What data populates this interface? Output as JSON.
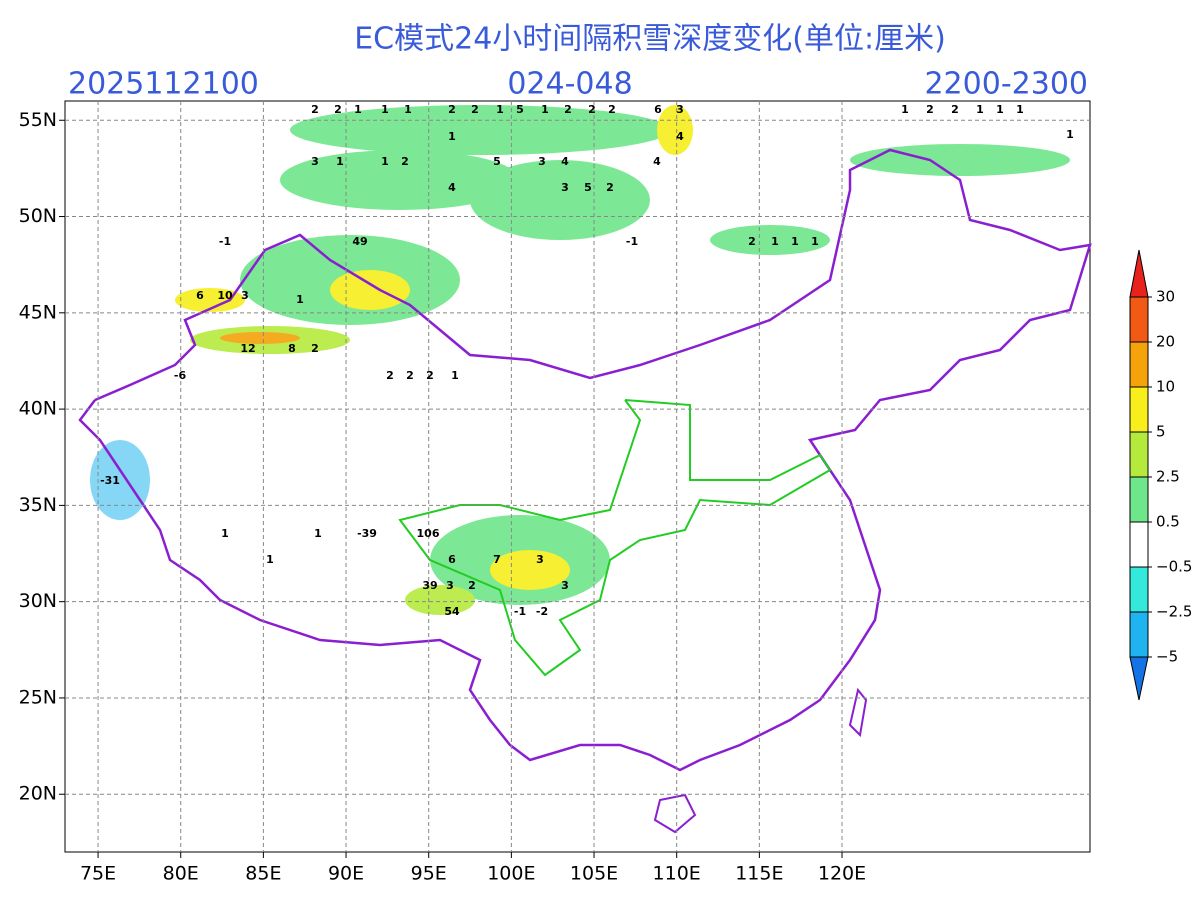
{
  "title": "EC模式24小时间隔积雪深度变化(单位:厘米)",
  "header": {
    "init_time": "2025112100",
    "forecast_hours": "024-048",
    "valid_range": "2200-2300"
  },
  "map": {
    "xlim": [
      73,
      135
    ],
    "ylim": [
      17,
      56
    ],
    "xticks": [
      {
        "value": 75,
        "label": "75E"
      },
      {
        "value": 80,
        "label": "80E"
      },
      {
        "value": 85,
        "label": "85E"
      },
      {
        "value": 90,
        "label": "90E"
      },
      {
        "value": 95,
        "label": "95E"
      },
      {
        "value": 100,
        "label": "100E"
      },
      {
        "value": 105,
        "label": "105E"
      },
      {
        "value": 110,
        "label": "110E"
      },
      {
        "value": 115,
        "label": "115E"
      },
      {
        "value": 120,
        "label": "120E"
      }
    ],
    "yticks": [
      {
        "value": 20,
        "label": "20N"
      },
      {
        "value": 25,
        "label": "25N"
      },
      {
        "value": 30,
        "label": "30N"
      },
      {
        "value": 35,
        "label": "35N"
      },
      {
        "value": 40,
        "label": "40N"
      },
      {
        "value": 45,
        "label": "45N"
      },
      {
        "value": 50,
        "label": "50N"
      },
      {
        "value": 55,
        "label": "55N"
      }
    ],
    "grid": true,
    "labels": [
      2,
      2,
      1,
      1,
      1,
      2,
      2,
      1,
      5,
      1,
      2,
      2,
      2,
      6,
      3,
      1,
      2,
      2,
      1,
      1,
      1,
      1,
      4,
      3,
      1,
      1,
      2,
      5,
      3,
      4,
      4,
      4,
      3,
      5,
      2,
      49,
      6,
      10,
      3,
      12,
      8,
      2,
      106,
      39,
      54,
      3,
      7,
      3,
      3,
      6,
      2,
      -1,
      -2,
      -1,
      -31,
      -6,
      1,
      1,
      1,
      -39,
      2,
      2,
      2,
      1,
      1,
      -1,
      2,
      1,
      1,
      1,
      1
    ]
  },
  "colorbar": {
    "levels": [
      {
        "value": 30,
        "label": "30"
      },
      {
        "value": 20,
        "label": "20"
      },
      {
        "value": 10,
        "label": "10"
      },
      {
        "value": 5,
        "label": "5"
      },
      {
        "value": 2.5,
        "label": "2.5"
      },
      {
        "value": 0.5,
        "label": "0.5"
      },
      {
        "value": -0.5,
        "label": "−0.5"
      },
      {
        "value": -2.5,
        "label": "−2.5"
      },
      {
        "value": -5,
        "label": "−5"
      }
    ],
    "colors": [
      "#e8231d",
      "#f05a14",
      "#f5a30a",
      "#f7ee1b",
      "#b5ea3c",
      "#6ee68a",
      "#ffffff",
      "#35e8dc",
      "#1fb4ef",
      "#1474e6"
    ]
  }
}
